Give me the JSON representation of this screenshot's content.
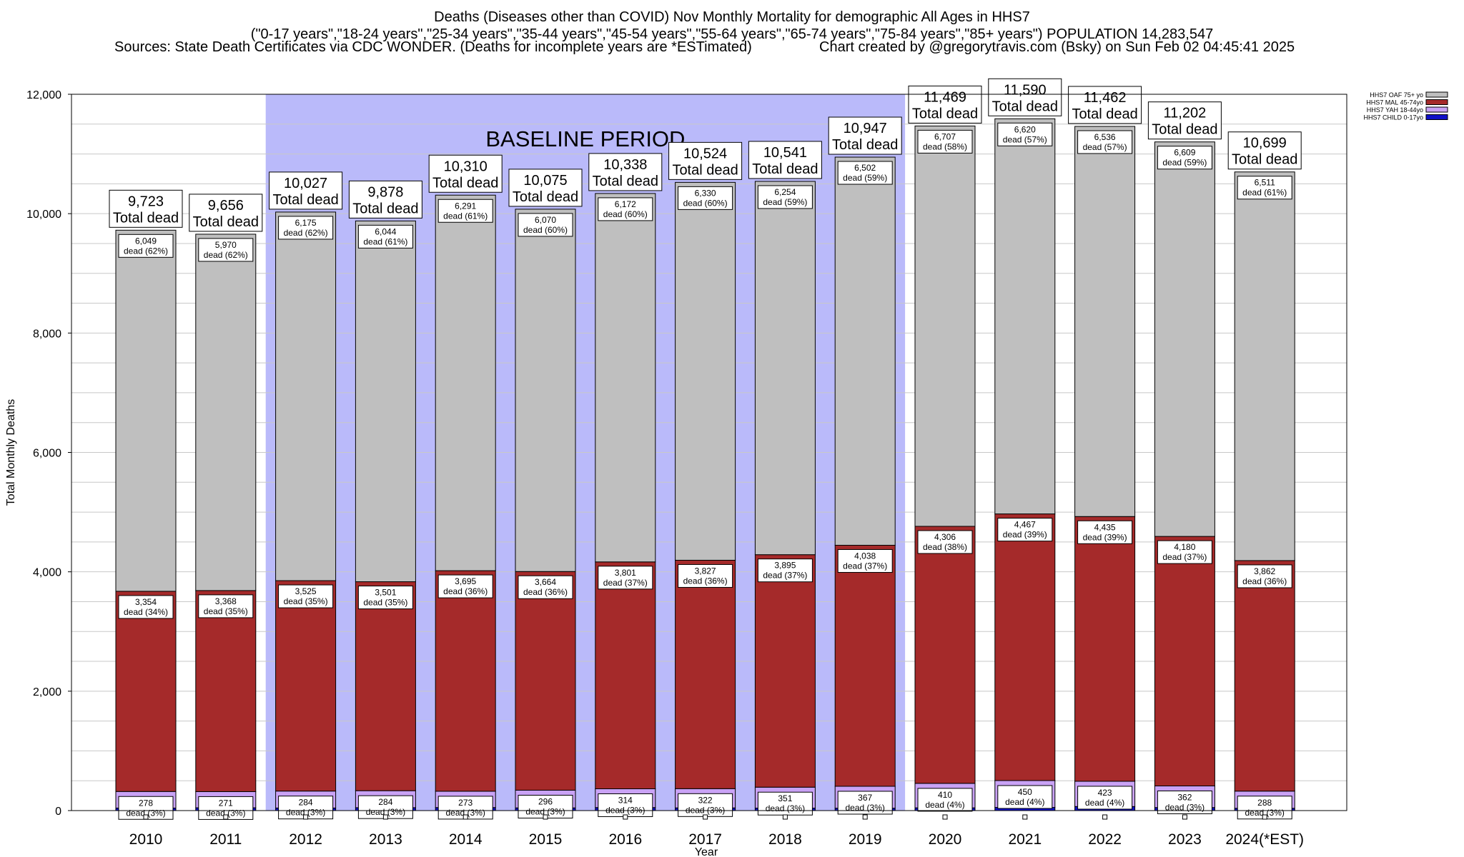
{
  "title": {
    "line1": "Deaths (Diseases other than COVID) Nov Monthly Mortality for demographic All Ages in HHS7",
    "line2": "(\"0-17 years\",\"18-24 years\",\"25-34 years\",\"35-44 years\",\"45-54 years\",\"55-64 years\",\"65-74 years\",\"75-84 years\",\"85+ years\") POPULATION 14,283,547",
    "sources": "Sources: State Death Certificates via CDC WONDER. (Deaths for incomplete years are *ESTimated)",
    "credit": "Chart created by @gregorytravis.com (Bsky) on Sun Feb 02 04:45:41 2025"
  },
  "colors": {
    "oaf": "#bfbfbf",
    "mal": "#a52a2a",
    "yah": "#c9a2f5",
    "child": "#1010c8",
    "baseline": "#babafa",
    "grid": "#c8c8c8"
  },
  "chart_data": {
    "type": "bar",
    "stacked": true,
    "xlabel": "Year",
    "ylabel": "Total Monthly Deaths",
    "ylim": [
      0,
      12000
    ],
    "yticks": [
      0,
      2000,
      4000,
      6000,
      8000,
      10000,
      12000
    ],
    "ytick_labels": [
      "0",
      "2,000",
      "4,000",
      "6,000",
      "8,000",
      "10,000",
      "12,000"
    ],
    "grid": true,
    "legend_position": "top-right",
    "baseline": {
      "label": "BASELINE PERIOD",
      "from": "2012",
      "to": "2019"
    },
    "total_label_suffix": "Total dead",
    "segment_label_prefix": "dead",
    "categories": [
      "2010",
      "2011",
      "2012",
      "2013",
      "2014",
      "2015",
      "2016",
      "2017",
      "2018",
      "2019",
      "2020",
      "2021",
      "2022",
      "2023",
      "2024(*EST)"
    ],
    "totals": [
      9723,
      9656,
      10027,
      9878,
      10310,
      10075,
      10338,
      10524,
      10541,
      10947,
      11469,
      11590,
      11462,
      11202,
      10699
    ],
    "total_labels": [
      "9,723",
      "9,656",
      "10,027",
      "9,878",
      "10,310",
      "10,075",
      "10,338",
      "10,524",
      "10,541",
      "10,947",
      "11,469",
      "11,590",
      "11,462",
      "11,202",
      "10,699"
    ],
    "series": [
      {
        "key": "child",
        "name": "HHS7 CHILD 0-17yo",
        "values": [
          42,
          47,
          43,
          49,
          51,
          45,
          51,
          45,
          41,
          40,
          46,
          53,
          68,
          51,
          38
        ]
      },
      {
        "key": "yah",
        "name": "HHS7 YAH 18-44yo",
        "values": [
          278,
          271,
          284,
          284,
          273,
          296,
          314,
          322,
          351,
          367,
          410,
          450,
          423,
          362,
          288
        ],
        "labels": [
          "278",
          "271",
          "284",
          "284",
          "273",
          "296",
          "314",
          "322",
          "351",
          "367",
          "410",
          "450",
          "423",
          "362",
          "288"
        ],
        "pcts": [
          "(3%)",
          "(3%)",
          "(3%)",
          "(3%)",
          "(3%)",
          "(3%)",
          "(3%)",
          "(3%)",
          "(3%)",
          "(3%)",
          "(4%)",
          "(4%)",
          "(4%)",
          "(3%)",
          "(3%)"
        ]
      },
      {
        "key": "mal",
        "name": "HHS7 MAL 45-74yo",
        "values": [
          3354,
          3368,
          3525,
          3501,
          3695,
          3664,
          3801,
          3827,
          3895,
          4038,
          4306,
          4467,
          4435,
          4180,
          3862
        ],
        "labels": [
          "3,354",
          "3,368",
          "3,525",
          "3,501",
          "3,695",
          "3,664",
          "3,801",
          "3,827",
          "3,895",
          "4,038",
          "4,306",
          "4,467",
          "4,435",
          "4,180",
          "3,862"
        ],
        "pcts": [
          "(34%)",
          "(35%)",
          "(35%)",
          "(35%)",
          "(36%)",
          "(36%)",
          "(37%)",
          "(36%)",
          "(37%)",
          "(37%)",
          "(38%)",
          "(39%)",
          "(39%)",
          "(37%)",
          "(36%)"
        ]
      },
      {
        "key": "oaf",
        "name": "HHS7 OAF 75+ yo",
        "values": [
          6049,
          5970,
          6175,
          6044,
          6291,
          6070,
          6172,
          6330,
          6254,
          6502,
          6707,
          6620,
          6536,
          6609,
          6511
        ],
        "labels": [
          "6,049",
          "5,970",
          "6,175",
          "6,044",
          "6,291",
          "6,070",
          "6,172",
          "6,330",
          "6,254",
          "6,502",
          "6,707",
          "6,620",
          "6,536",
          "6,609",
          "6,511"
        ],
        "pcts": [
          "(62%)",
          "(62%)",
          "(62%)",
          "(61%)",
          "(61%)",
          "(60%)",
          "(60%)",
          "(60%)",
          "(59%)",
          "(59%)",
          "(58%)",
          "(57%)",
          "(57%)",
          "(59%)",
          "(61%)"
        ]
      }
    ],
    "legend_order": [
      "oaf",
      "mal",
      "yah",
      "child"
    ]
  }
}
